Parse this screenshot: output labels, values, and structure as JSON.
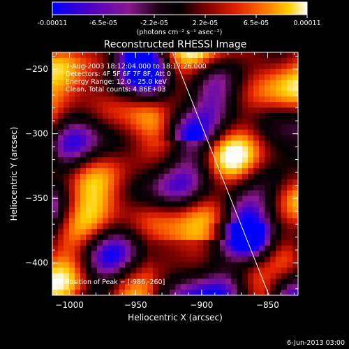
{
  "colorbar": {
    "ticks": [
      "-0.00011",
      "-6.5e-05",
      "-2.2e-05",
      "2.2e-05",
      "6.5e-05",
      "0.00011"
    ],
    "units_label": "(photons cm⁻² s⁻¹ asec⁻²)",
    "colors": [
      "#0000ff",
      "#4a00c8",
      "#8a1890",
      "#1a0010",
      "#000000",
      "#7a0000",
      "#e02000",
      "#ff7a00",
      "#ffd000",
      "#ffffff"
    ]
  },
  "chart_data": {
    "type": "heatmap",
    "title": "Reconstructed RHESSI Image",
    "xlabel": "Heliocentric X (arcsec)",
    "ylabel": "Heliocentric Y (arcsec)",
    "xlim": [
      -1013,
      -827
    ],
    "ylim": [
      -425,
      -237
    ],
    "x_ticks": [
      -1000,
      -950,
      -900,
      -850
    ],
    "y_ticks": [
      -250,
      -300,
      -350,
      -400
    ],
    "x_tick_labels": [
      "−1000",
      "−950",
      "−900",
      "−850"
    ],
    "y_tick_labels": [
      "−250",
      "−300",
      "−350",
      "−400"
    ],
    "info_lines": [
      "7-Aug-2003 18:12:04.000 to 18:17:26.000",
      "Detectors: 4F 5F 6F 7F 8F, Att 0",
      "Energy Range: 12.0 - 25.0 keV",
      "Clean.   Total counts: 4.86E+03"
    ],
    "peak_label": "Position of Peak = [-986,-260]",
    "limb_line": {
      "start": [
        -922,
        -237
      ],
      "end": [
        -849,
        -425
      ]
    }
  },
  "footer": {
    "timestamp": "6-Jun-2013 03:00"
  }
}
